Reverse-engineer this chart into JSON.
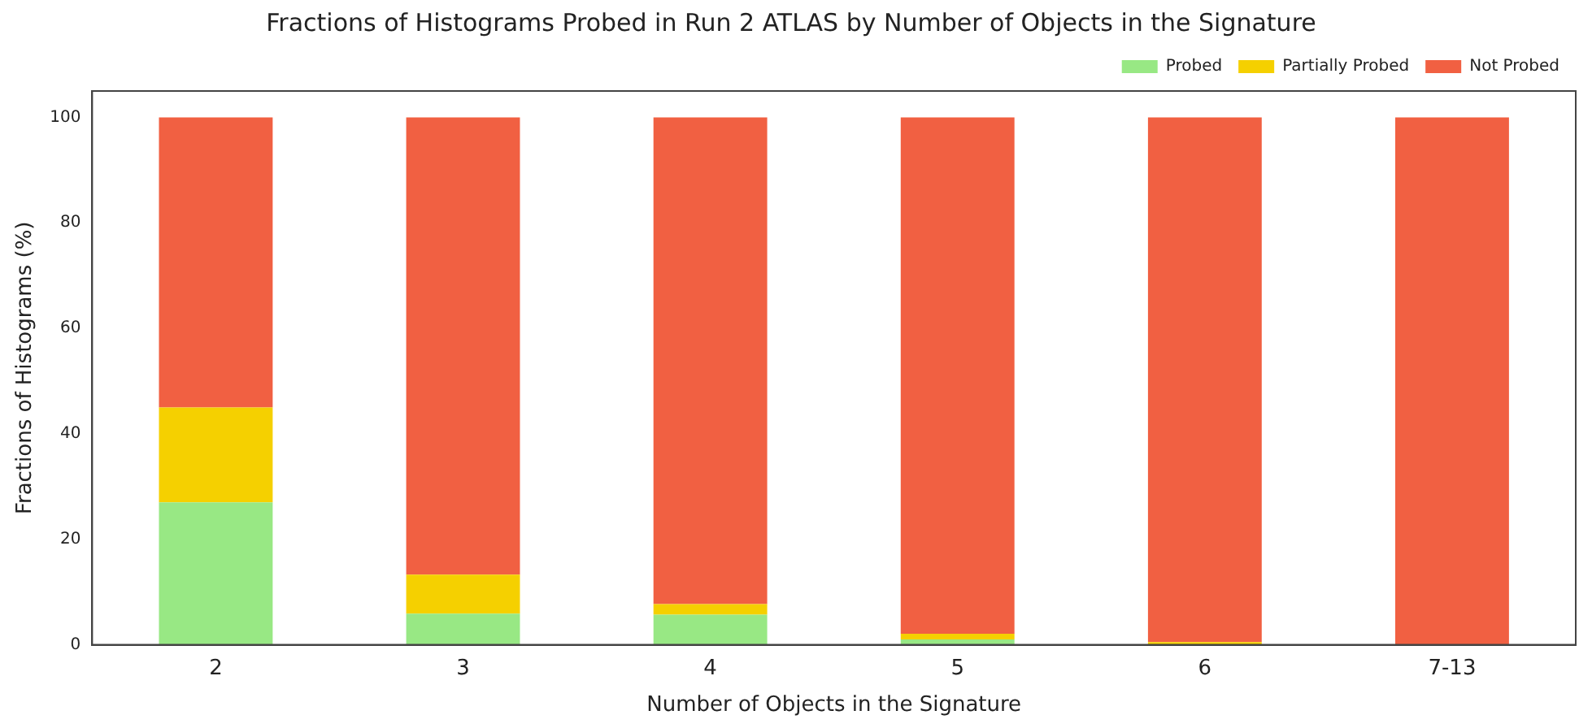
{
  "chart_data": {
    "type": "bar",
    "title": "Fractions of Histograms Probed in Run 2 ATLAS by Number of Objects in the Signature",
    "xlabel": "Number of Objects in the Signature",
    "ylabel": "Fractions of Histograms (%)",
    "categories": [
      "2",
      "3",
      "4",
      "5",
      "6",
      "7-13"
    ],
    "series": [
      {
        "name": "Probed",
        "color": "#98e884",
        "values": [
          27,
          5.9,
          5.7,
          1.0,
          0,
          0
        ]
      },
      {
        "name": "Partially Probed",
        "color": "#f5d000",
        "values": [
          18,
          7.4,
          2.0,
          1.1,
          0.5,
          0
        ]
      },
      {
        "name": "Not Probed",
        "color": "#f16042",
        "values": [
          55,
          86.7,
          92.3,
          97.9,
          99.5,
          100
        ]
      }
    ],
    "stacked": true,
    "ylim": [
      0,
      105
    ],
    "yticks": [
      0,
      20,
      40,
      60,
      80,
      100
    ],
    "grid": false,
    "legend": "top right"
  }
}
